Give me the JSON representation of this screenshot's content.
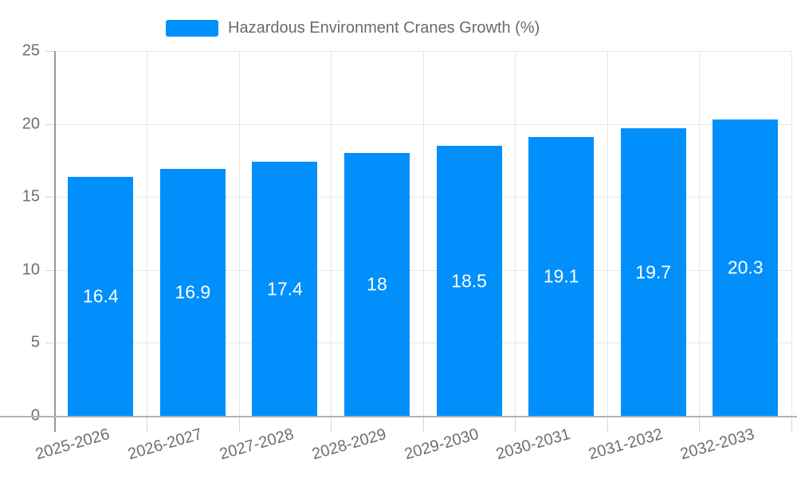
{
  "chart_data": {
    "type": "bar",
    "legend": "Hazardous Environment Cranes Growth (%)",
    "legend_position": "top",
    "categories": [
      "2025-2026",
      "2026-2027",
      "2027-2028",
      "2028-2029",
      "2029-2030",
      "2030-2031",
      "2031-2032",
      "2032-2033"
    ],
    "values": [
      16.4,
      16.9,
      17.4,
      18,
      18.5,
      19.1,
      19.7,
      20.3
    ],
    "value_labels": [
      "16.4",
      "16.9",
      "17.4",
      "18",
      "18.5",
      "19.1",
      "19.7",
      "20.3"
    ],
    "ylim": [
      0,
      25
    ],
    "yticks": [
      0,
      5,
      10,
      15,
      20,
      25
    ],
    "ytick_labels": [
      "0",
      "5",
      "10",
      "15",
      "20",
      "25"
    ],
    "grid": true,
    "colors": {
      "bar": "#008FFB",
      "data_label": "#FFFFFF",
      "axis_text": "#6E6E6E",
      "legend_text": "#6A6A6A",
      "gridline": "#E7E7E7",
      "axis_line": "#999999",
      "baseline": "#B3B3B3",
      "tick": "#D6D6D6",
      "background": "#FFFFFF"
    }
  }
}
